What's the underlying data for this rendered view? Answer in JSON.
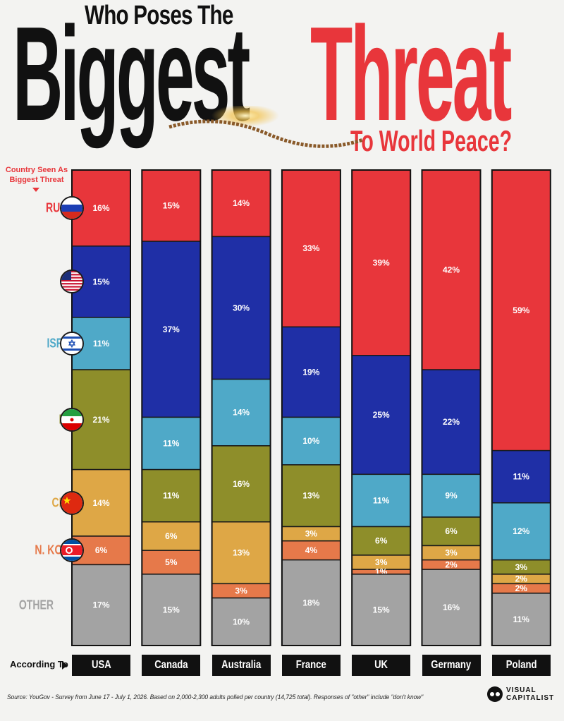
{
  "title": {
    "line1": "Who Poses The",
    "big": "Biggest",
    "threat": "Threat",
    "sub": "To World Peace?"
  },
  "legend_header": "Country Seen As Biggest Threat",
  "according_to": "According To",
  "source": "Source: YouGov - Survey from June 17 - July 1, 2026. Based on 2,000-2,300 adults polled per country (14,725 total). Responses of \"other\" include \"don't know\"",
  "logo": {
    "line1": "VISUAL",
    "line2": "CAPITALIST"
  },
  "colors": {
    "russia": "#e8363b",
    "usa": "#1f2fa6",
    "israel": "#4fa9c8",
    "iran": "#8e8e2a",
    "china": "#dea746",
    "nkorea": "#e6794a",
    "other": "#a3a3a3"
  },
  "chart_data": {
    "type": "bar",
    "stacked": true,
    "normalized": true,
    "categories": [
      "USA",
      "Canada",
      "Australia",
      "France",
      "UK",
      "Germany",
      "Poland"
    ],
    "series": [
      {
        "name": "RUSSIA",
        "color": "#e8363b",
        "values": [
          16,
          15,
          14,
          33,
          39,
          42,
          59
        ]
      },
      {
        "name": "USA",
        "color": "#1f2fa6",
        "values": [
          15,
          37,
          30,
          19,
          25,
          22,
          11
        ]
      },
      {
        "name": "ISRAEL",
        "color": "#4fa9c8",
        "values": [
          11,
          11,
          14,
          10,
          11,
          9,
          12
        ]
      },
      {
        "name": "IRAN",
        "color": "#8e8e2a",
        "values": [
          21,
          11,
          16,
          13,
          6,
          6,
          3
        ]
      },
      {
        "name": "CHINA",
        "color": "#dea746",
        "values": [
          14,
          6,
          13,
          3,
          3,
          3,
          2
        ]
      },
      {
        "name": "N. KOREA",
        "color": "#e6794a",
        "values": [
          6,
          5,
          3,
          4,
          1,
          2,
          2
        ]
      },
      {
        "name": "OTHER",
        "color": "#a3a3a3",
        "values": [
          17,
          15,
          10,
          18,
          15,
          16,
          11
        ]
      }
    ],
    "ylim": [
      0,
      100
    ],
    "unit": "%"
  }
}
